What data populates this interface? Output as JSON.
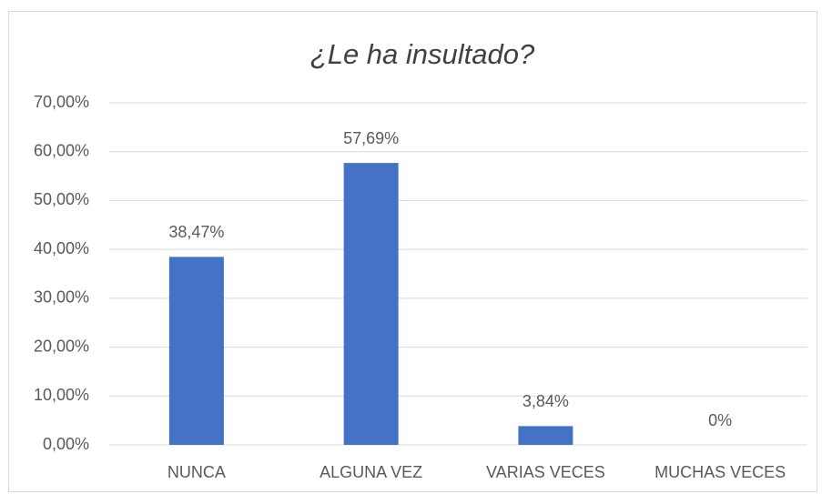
{
  "chart_data": {
    "type": "bar",
    "title": "¿Le ha insultado?",
    "categories": [
      "NUNCA",
      "ALGUNA VEZ",
      "VARIAS VECES",
      "MUCHAS VECES"
    ],
    "values": [
      38.47,
      57.69,
      3.84,
      0
    ],
    "value_labels": [
      "38,47%",
      "57,69%",
      "3,84%",
      "0%"
    ],
    "color": "#4472c4",
    "ylim": [
      0,
      70
    ],
    "yticks": [
      {
        "value": 0,
        "label": "0,00%"
      },
      {
        "value": 10,
        "label": "10,00%"
      },
      {
        "value": 20,
        "label": "20,00%"
      },
      {
        "value": 30,
        "label": "30,00%"
      },
      {
        "value": 40,
        "label": "40,00%"
      },
      {
        "value": 50,
        "label": "50,00%"
      },
      {
        "value": 60,
        "label": "60,00%"
      },
      {
        "value": 70,
        "label": "70,00%"
      }
    ],
    "grid": true
  }
}
